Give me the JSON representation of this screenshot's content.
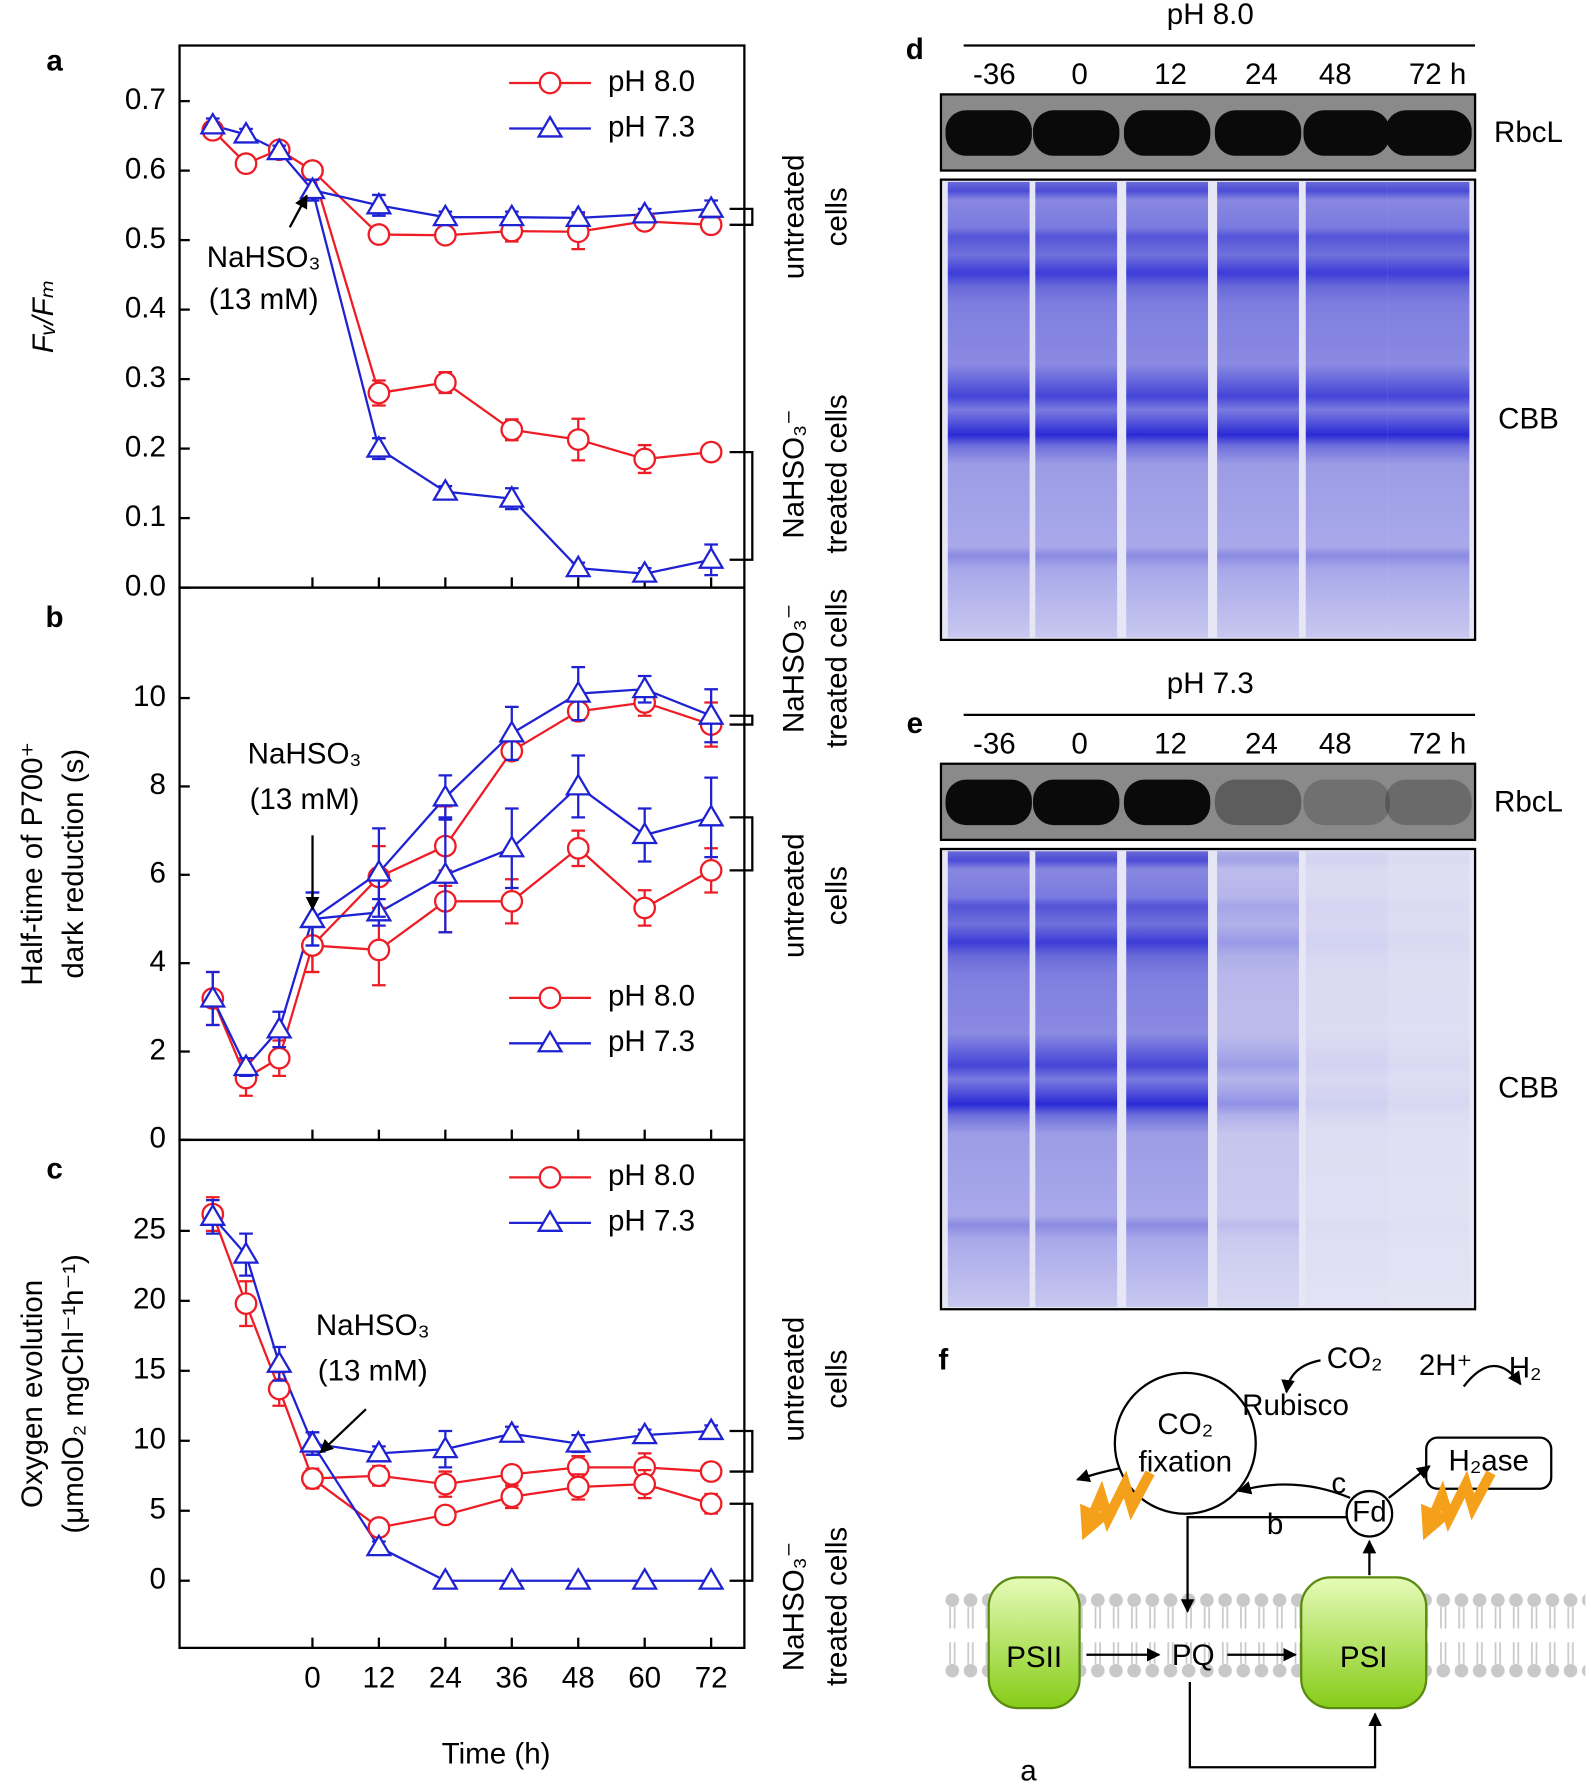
{
  "panel_labels": [
    "a",
    "b",
    "c",
    "d",
    "e",
    "f"
  ],
  "chart_data": [
    {
      "type": "line",
      "ylabel": "Fᵥ/Fₘ",
      "xlim": [
        -24,
        78
      ],
      "ylim": [
        0,
        0.78
      ],
      "yticks": [
        {
          "value": 0,
          "label": "0.0"
        },
        0.1,
        0.2,
        0.3,
        0.4,
        0.5,
        0.6,
        0.7
      ],
      "legend": "upper right",
      "treatment": [
        "NaHSO₃",
        "(13 mM)"
      ],
      "annotations": [
        [
          "untreated",
          "cells"
        ],
        [
          "NaHSO₃⁻",
          "treated cells"
        ]
      ],
      "series": [
        {
          "name": "pH 8.0",
          "color": "#ee1c25",
          "marker": "circle",
          "x": [
            -18,
            -12,
            -6,
            0,
            12,
            24,
            36,
            48,
            60,
            72
          ],
          "values": [
            0.658,
            0.61,
            0.63,
            0.6,
            0.508,
            0.507,
            0.513,
            0.512,
            0.527,
            0.522
          ],
          "errors": [
            0.01,
            0.012,
            0.008,
            0.012,
            0.008,
            0.008,
            0.015,
            0.025,
            0.01,
            0.01
          ]
        },
        {
          "color": "#ee1c25",
          "marker": "circle",
          "x": [
            0,
            12,
            24,
            36,
            48,
            60,
            72
          ],
          "values": [
            0.6,
            0.28,
            0.295,
            0.227,
            0.213,
            0.185,
            0.195
          ],
          "errors": [
            0.012,
            0.018,
            0.015,
            0.015,
            0.03,
            0.02,
            0.01
          ]
        },
        {
          "name": "pH 7.3",
          "color": "#1f22d2",
          "marker": "triangle",
          "x": [
            -18,
            -12,
            -6,
            0,
            12,
            24,
            36,
            48,
            60,
            72
          ],
          "values": [
            0.665,
            0.652,
            0.628,
            0.572,
            0.55,
            0.533,
            0.533,
            0.532,
            0.537,
            0.545
          ],
          "errors": [
            0.01,
            0.008,
            0.008,
            0.015,
            0.015,
            0.008,
            0.008,
            0.008,
            0.008,
            0.012
          ]
        },
        {
          "color": "#1f22d2",
          "marker": "triangle",
          "x": [
            0,
            12,
            24,
            36,
            48,
            60,
            72
          ],
          "values": [
            0.572,
            0.2,
            0.138,
            0.128,
            0.028,
            0.02,
            0.04
          ],
          "errors": [
            0.015,
            0.015,
            0.008,
            0.015,
            0.008,
            0.008,
            0.022
          ]
        }
      ]
    },
    {
      "type": "line",
      "ylabel": [
        "Half-time of P700⁺",
        "dark reduction (s)"
      ],
      "xlim": [
        -24,
        78
      ],
      "ylim": [
        0,
        12.5
      ],
      "yticks": [
        0,
        2,
        4,
        6,
        8,
        10
      ],
      "legend": "lower right",
      "treatment": [
        "NaHSO₃",
        "(13 mM)"
      ],
      "annotations": [
        [
          "untreated",
          "cells"
        ],
        [
          "NaHSO₃⁻",
          "treated cells"
        ]
      ],
      "series": [
        {
          "name": "pH 8.0",
          "color": "#ee1c25",
          "marker": "circle",
          "x": [
            -18,
            -12,
            -6,
            0,
            12,
            24,
            36,
            48,
            60,
            72
          ],
          "values": [
            3.2,
            1.4,
            1.85,
            4.4,
            4.3,
            5.4,
            5.4,
            6.6,
            5.25,
            6.1
          ],
          "errors": [
            0.6,
            0.4,
            0.4,
            0.6,
            0.8,
            0.7,
            0.5,
            0.4,
            0.4,
            0.5
          ]
        },
        {
          "color": "#ee1c25",
          "marker": "circle",
          "x": [
            0,
            12,
            24,
            36,
            48,
            60,
            72
          ],
          "values": [
            4.4,
            5.95,
            6.65,
            8.8,
            9.7,
            9.9,
            9.4
          ],
          "errors": [
            0.6,
            0.7,
            0.9,
            0.2,
            0.2,
            0.3,
            0.5
          ]
        },
        {
          "name": "pH 7.3",
          "color": "#1f22d2",
          "marker": "triangle",
          "x": [
            -18,
            -12,
            -6,
            0,
            12,
            24,
            36,
            48,
            60,
            72
          ],
          "values": [
            3.2,
            1.65,
            2.5,
            5.0,
            5.15,
            6.0,
            6.6,
            8.0,
            6.9,
            7.3
          ],
          "errors": [
            0.6,
            0.2,
            0.4,
            0.6,
            0.3,
            1.3,
            0.9,
            0.7,
            0.6,
            0.9
          ]
        },
        {
          "color": "#1f22d2",
          "marker": "triangle",
          "x": [
            0,
            12,
            24,
            36,
            48,
            60,
            72
          ],
          "values": [
            5.0,
            6.05,
            7.75,
            9.2,
            10.1,
            10.2,
            9.6
          ],
          "errors": [
            0.6,
            1.0,
            0.5,
            0.6,
            0.6,
            0.3,
            0.6
          ]
        }
      ]
    },
    {
      "type": "line",
      "ylabel": [
        "Oxygen evolution",
        "(μmolO₂ mgChl⁻¹h⁻¹)"
      ],
      "xlabel": "Time (h)",
      "xlim": [
        -24,
        78
      ],
      "ylim": [
        -4.8,
        31.5
      ],
      "xticks": [
        0,
        12,
        24,
        36,
        48,
        60,
        72
      ],
      "yticks": [
        0,
        5,
        10,
        15,
        20,
        25
      ],
      "legend": "upper right",
      "treatment": [
        "NaHSO₃",
        "(13 mM)"
      ],
      "annotations": [
        [
          "untreated",
          "cells"
        ],
        [
          "NaHSO₃⁻",
          "treated cells"
        ]
      ],
      "series": [
        {
          "name": "pH 8.0",
          "color": "#ee1c25",
          "marker": "circle",
          "x": [
            -18,
            -12,
            -6,
            0,
            12,
            24,
            36,
            48,
            60,
            72
          ],
          "values": [
            26.2,
            19.8,
            13.7,
            7.3,
            7.5,
            6.9,
            7.6,
            8.1,
            8.1,
            7.8
          ],
          "errors": [
            1.2,
            1.6,
            1.2,
            0.7,
            0.7,
            0.9,
            0.6,
            0.8,
            1.0,
            0.6
          ]
        },
        {
          "color": "#ee1c25",
          "marker": "circle",
          "x": [
            0,
            12,
            24,
            36,
            48,
            60,
            72
          ],
          "values": [
            7.3,
            3.8,
            4.7,
            6.0,
            6.7,
            6.9,
            5.5
          ],
          "errors": [
            0.7,
            0.4,
            0.5,
            0.8,
            0.9,
            1.0,
            0.7
          ]
        },
        {
          "name": "pH 7.3",
          "color": "#1f22d2",
          "marker": "triangle",
          "x": [
            -18,
            -12,
            -6,
            0,
            12,
            24,
            36,
            48,
            60,
            72
          ],
          "values": [
            26.0,
            23.3,
            15.5,
            9.8,
            9.1,
            9.4,
            10.5,
            9.8,
            10.4,
            10.7
          ],
          "errors": [
            1.2,
            1.5,
            1.2,
            0.8,
            0.5,
            1.3,
            0.5,
            0.6,
            0.4,
            0.4
          ]
        },
        {
          "color": "#1f22d2",
          "marker": "triangle",
          "x": [
            0,
            12,
            24,
            36,
            48,
            60,
            72
          ],
          "values": [
            9.8,
            2.4,
            0,
            0,
            0,
            0,
            0
          ],
          "errors": [
            0.8,
            0.4,
            0,
            0,
            0,
            0,
            0
          ]
        }
      ]
    }
  ],
  "gels": [
    {
      "title": "pH 8.0",
      "lanes": [
        "-36",
        "0",
        "12",
        "24",
        "48",
        "72 h"
      ],
      "bands": [
        "RbcL",
        "CBB"
      ]
    },
    {
      "title": "pH 7.3",
      "lanes": [
        "-36",
        "0",
        "12",
        "24",
        "48",
        "72 h"
      ],
      "bands": [
        "RbcL",
        "CBB"
      ]
    }
  ],
  "diagram": {
    "nodes": [
      "CO₂",
      "fixation",
      "CO₂",
      "Rubisco",
      "2H⁺",
      "H₂",
      "H₂ase",
      "c",
      "b",
      "Fd",
      "PSII",
      "PQ",
      "PSI",
      "a"
    ]
  }
}
